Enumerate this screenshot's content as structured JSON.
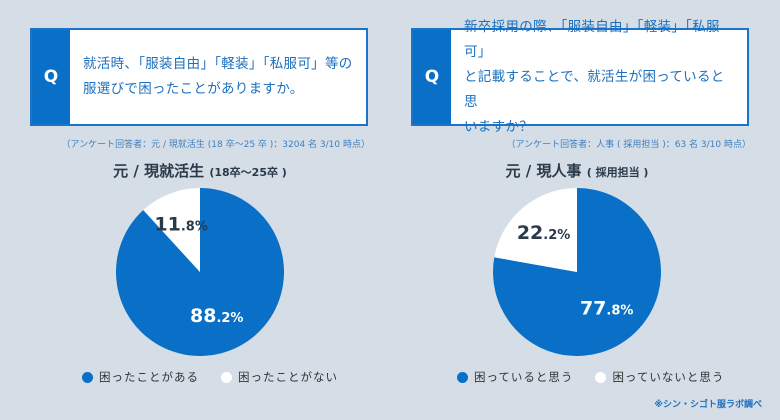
{
  "colors": {
    "blue": "#0a6fc6",
    "white": "#ffffff"
  },
  "left": {
    "q": "Q",
    "question": "就活時、「服装自由」「軽装」「私服可」等の\n服選びで困ったことがありますか。",
    "note": "（アンケート回答者：元 / 現就活生 (18 卒〜25 卒 )：3204 名 3/10 時点）",
    "title": "元 / 現就活生",
    "title_sub": "(18卒〜25卒 )"
  },
  "right": {
    "q": "Q",
    "question": "新卒採用の際、「服装自由」「軽装」「私服可」\nと記載することで、就活生が困っていると思\nいますか？",
    "note": "（アンケート回答者：人事 ( 採用担当 )：63 名 3/10 時点）",
    "title": "元 / 現人事",
    "title_sub": "( 採用担当 )"
  },
  "credit": "※シン・シゴト服ラボ調べ",
  "chart_data": [
    {
      "type": "pie",
      "title": "元 / 現就活生 (18卒〜25卒 )",
      "labels": [
        "困ったことがある",
        "困ったことがない"
      ],
      "values": [
        88.2,
        11.8
      ],
      "value_labels": [
        "88.2%",
        "11.8%"
      ],
      "legend": "bottom"
    },
    {
      "type": "pie",
      "title": "元 / 現人事 ( 採用担当 )",
      "labels": [
        "困っていると思う",
        "困っていないと思う"
      ],
      "values": [
        77.8,
        22.2
      ],
      "value_labels": [
        "77.8%",
        "22.2%"
      ],
      "legend": "bottom"
    }
  ]
}
